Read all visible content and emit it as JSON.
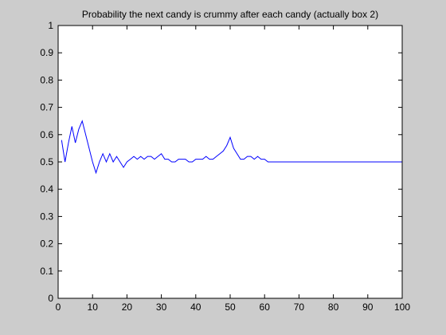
{
  "chart_data": {
    "type": "line",
    "title": "Probability the next candy is crummy after each candy (actually box 2)",
    "xlabel": "",
    "ylabel": "",
    "xlim": [
      0,
      100
    ],
    "ylim": [
      0,
      1
    ],
    "xticks": [
      "0",
      "10",
      "20",
      "30",
      "40",
      "50",
      "60",
      "70",
      "80",
      "90",
      "100"
    ],
    "yticks": [
      "0",
      "0.1",
      "0.2",
      "0.3",
      "0.4",
      "0.5",
      "0.6",
      "0.7",
      "0.8",
      "0.9",
      "1"
    ],
    "grid": false,
    "line_color": "#0000ff",
    "background_color": "#cccccc",
    "plot_color": "#ffffff",
    "series": [
      {
        "x": [
          1,
          2,
          3,
          4,
          5,
          6,
          7,
          8,
          9,
          10,
          11,
          12,
          13,
          14,
          15,
          16,
          17,
          18,
          19,
          20,
          21,
          22,
          23,
          24,
          25,
          26,
          27,
          28,
          29,
          30,
          31,
          32,
          33,
          34,
          35,
          36,
          37,
          38,
          39,
          40,
          41,
          42,
          43,
          44,
          45,
          46,
          47,
          48,
          49,
          50,
          51,
          52,
          53,
          54,
          55,
          56,
          57,
          58,
          59,
          60,
          61,
          62,
          63,
          64,
          65,
          66,
          67,
          68,
          69,
          70,
          71,
          72,
          73,
          74,
          75,
          76,
          77,
          78,
          79,
          80,
          81,
          82,
          83,
          84,
          85,
          86,
          87,
          88,
          89,
          90,
          91,
          92,
          93,
          94,
          95,
          96,
          97,
          98,
          99,
          100
        ],
        "y": [
          0.58,
          0.5,
          0.57,
          0.63,
          0.57,
          0.62,
          0.65,
          0.6,
          0.55,
          0.5,
          0.46,
          0.5,
          0.53,
          0.5,
          0.53,
          0.5,
          0.52,
          0.5,
          0.48,
          0.5,
          0.51,
          0.52,
          0.51,
          0.52,
          0.51,
          0.52,
          0.52,
          0.51,
          0.52,
          0.53,
          0.51,
          0.51,
          0.5,
          0.5,
          0.51,
          0.51,
          0.51,
          0.5,
          0.5,
          0.51,
          0.51,
          0.51,
          0.52,
          0.51,
          0.51,
          0.52,
          0.53,
          0.54,
          0.56,
          0.59,
          0.55,
          0.53,
          0.51,
          0.51,
          0.52,
          0.52,
          0.51,
          0.52,
          0.51,
          0.51,
          0.5,
          0.5,
          0.5,
          0.5,
          0.5,
          0.5,
          0.5,
          0.5,
          0.5,
          0.5,
          0.5,
          0.5,
          0.5,
          0.5,
          0.5,
          0.5,
          0.5,
          0.5,
          0.5,
          0.5,
          0.5,
          0.5,
          0.5,
          0.5,
          0.5,
          0.5,
          0.5,
          0.5,
          0.5,
          0.5,
          0.5,
          0.5,
          0.5,
          0.5,
          0.5,
          0.5,
          0.5,
          0.5,
          0.5,
          0.5
        ]
      }
    ]
  }
}
